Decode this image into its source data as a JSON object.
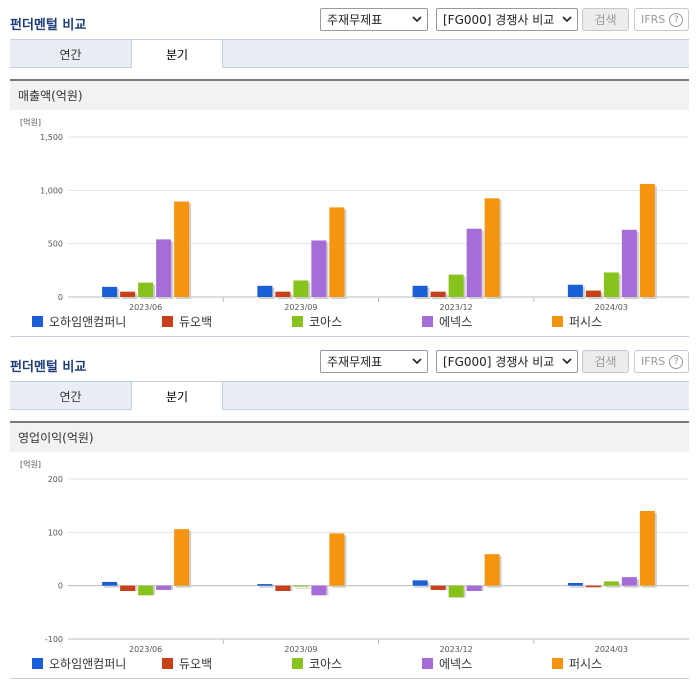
{
  "panels": [
    {
      "title": "펀더멘털 비교",
      "select1": "주재무제표",
      "select2": "[FG000] 경쟁사 비교",
      "search_label": "검색",
      "ifrs_label": "IFRS",
      "help_glyph": "?",
      "tabs": [
        {
          "label": "연간"
        },
        {
          "label": "분기"
        }
      ],
      "active_tab": "분기",
      "metric_title": "매출액(억원)"
    },
    {
      "title": "펀더멘털 비교",
      "select1": "주재무제표",
      "select2": "[FG000] 경쟁사 비교",
      "search_label": "검색",
      "ifrs_label": "IFRS",
      "help_glyph": "?",
      "tabs": [
        {
          "label": "연간"
        },
        {
          "label": "분기"
        }
      ],
      "active_tab": "분기",
      "metric_title": "영업이익(억원)"
    }
  ],
  "series_colors": {
    "오하임앤컴퍼니": "#1a5fd6",
    "듀오백": "#c8401a",
    "코아스": "#88c21c",
    "에넥스": "#a66cd8",
    "퍼시스": "#f5940e"
  },
  "chart_data": [
    {
      "type": "bar",
      "unit_label": "[억원]",
      "categories": [
        "2023/06",
        "2023/09",
        "2023/12",
        "2024/03"
      ],
      "ylim": [
        0,
        1500
      ],
      "yticks": [
        0,
        500,
        1000,
        1500
      ],
      "ytick_labels": [
        "0",
        "500",
        "1,000",
        "1,500"
      ],
      "series": [
        {
          "name": "오하임앤컴퍼니",
          "values": [
            95,
            105,
            105,
            115
          ]
        },
        {
          "name": "듀오백",
          "values": [
            50,
            50,
            50,
            60
          ]
        },
        {
          "name": "코아스",
          "values": [
            135,
            155,
            210,
            230
          ]
        },
        {
          "name": "에넥스",
          "values": [
            540,
            530,
            640,
            630
          ]
        },
        {
          "name": "퍼시스",
          "values": [
            895,
            840,
            925,
            1060
          ]
        }
      ],
      "legend": "bottom"
    },
    {
      "type": "bar",
      "unit_label": "[억원]",
      "categories": [
        "2023/06",
        "2023/09",
        "2023/12",
        "2024/03"
      ],
      "ylim": [
        -100,
        200
      ],
      "yticks": [
        -100,
        0,
        100,
        200
      ],
      "ytick_labels": [
        "-100",
        "0",
        "100",
        "200"
      ],
      "series": [
        {
          "name": "오하임앤컴퍼니",
          "values": [
            7,
            3,
            10,
            5
          ]
        },
        {
          "name": "듀오백",
          "values": [
            -10,
            -10,
            -8,
            -3
          ]
        },
        {
          "name": "코아스",
          "values": [
            -18,
            0,
            -22,
            8
          ]
        },
        {
          "name": "에넥스",
          "values": [
            -8,
            -18,
            -10,
            16
          ]
        },
        {
          "name": "퍼시스",
          "values": [
            106,
            98,
            59,
            140
          ]
        }
      ],
      "legend": "bottom"
    }
  ]
}
